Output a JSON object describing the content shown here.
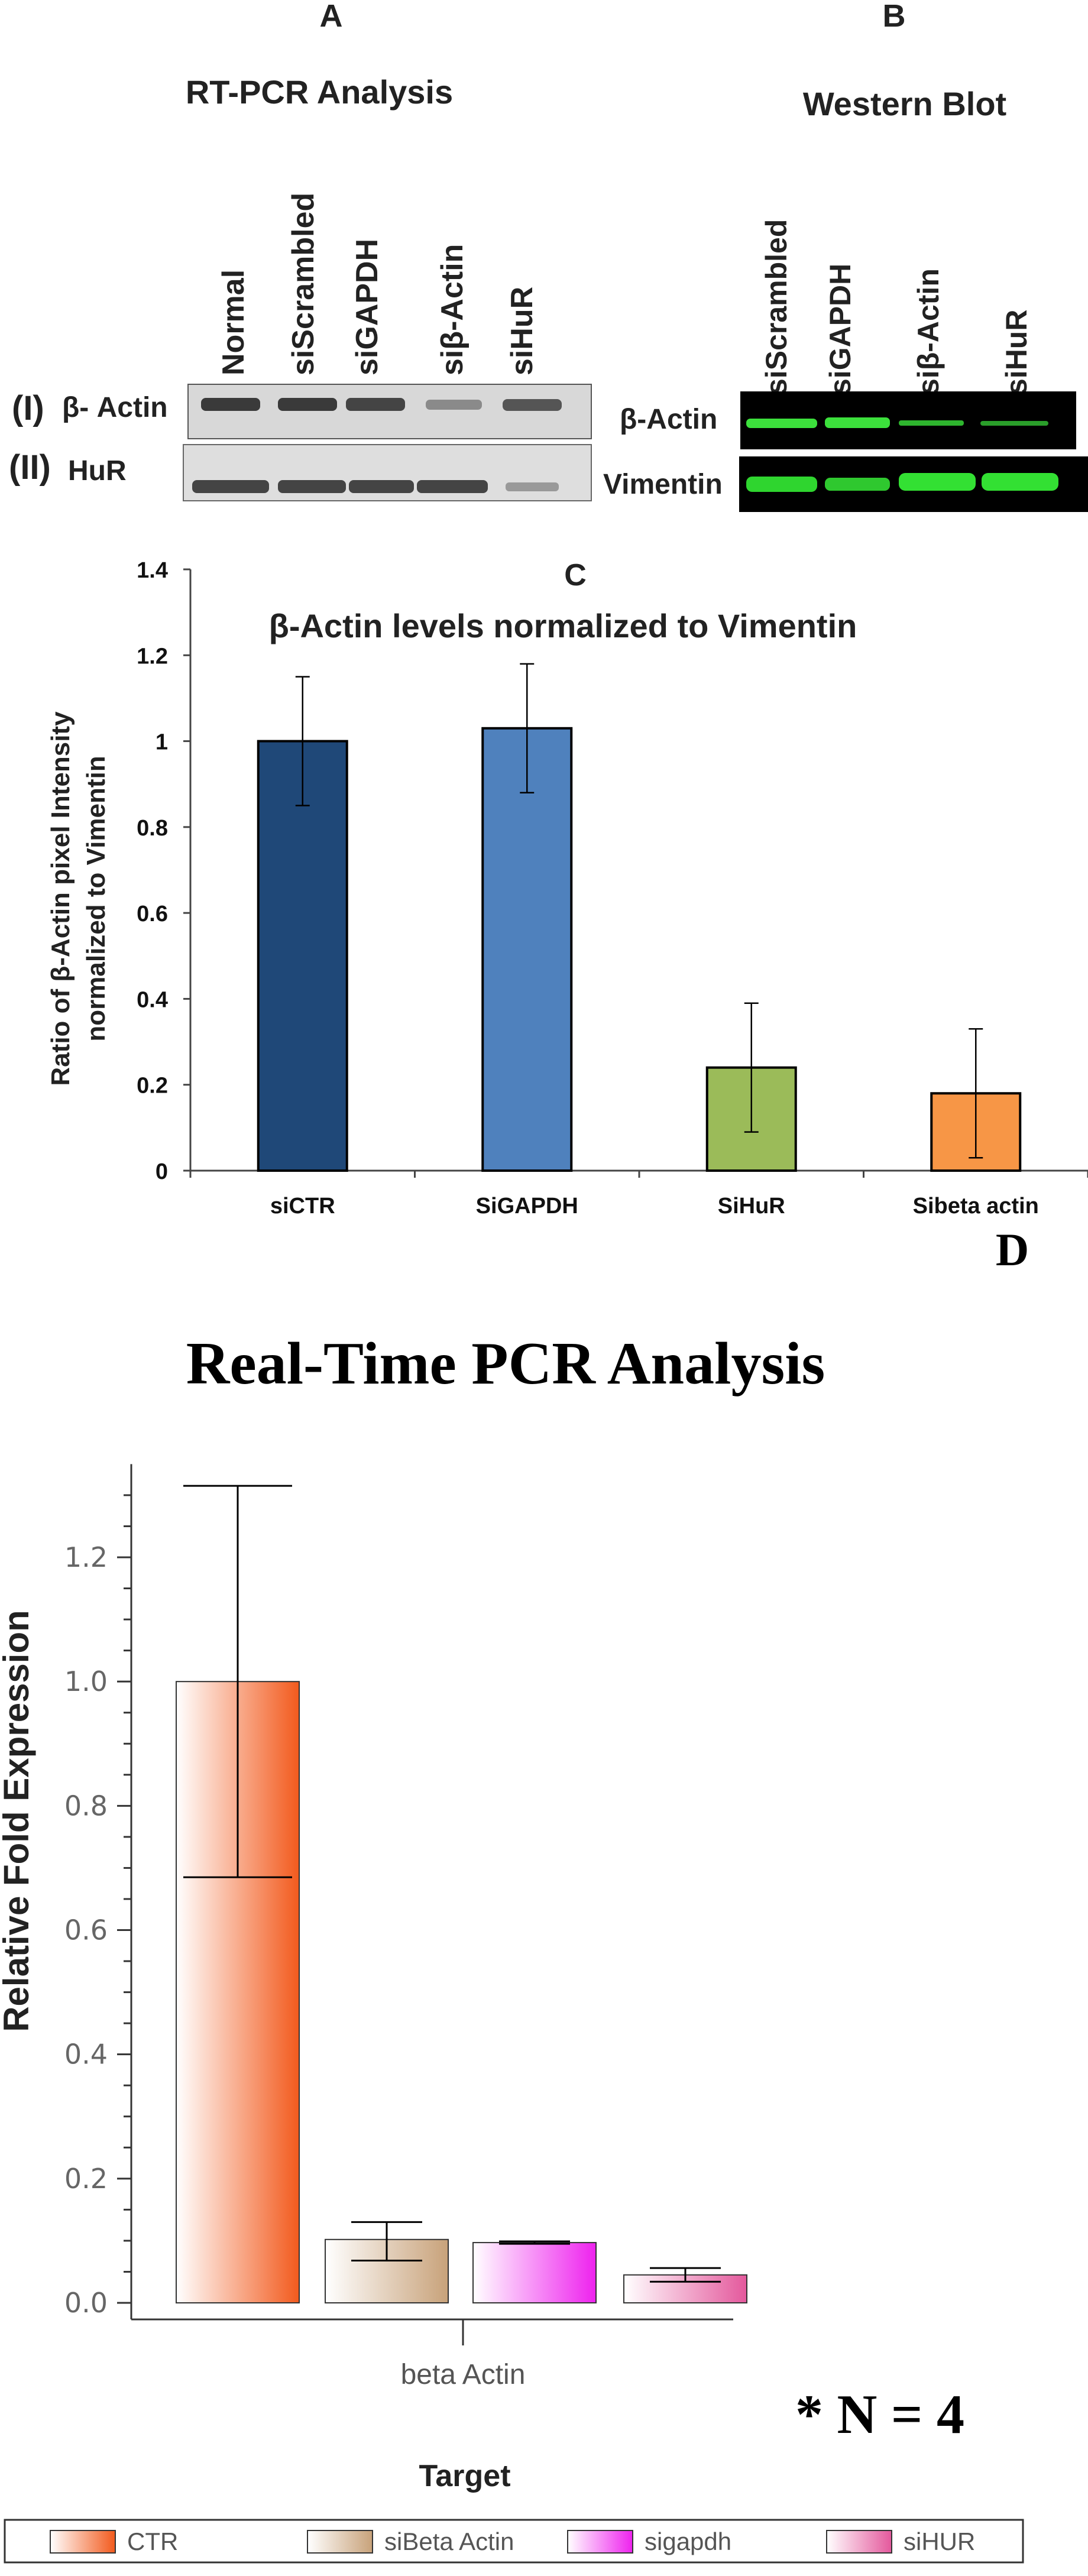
{
  "panel_a": {
    "letter": "A",
    "title": "RT-PCR Analysis",
    "lanes": [
      "Normal",
      "siScrambled",
      "siGAPDH",
      "siβ-Actin",
      "siHuR"
    ],
    "rows": [
      {
        "prefix": "(I)",
        "label": "β- Actin"
      },
      {
        "prefix": "(II)",
        "label": "HuR"
      }
    ]
  },
  "panel_b": {
    "letter": "B",
    "title": "Western Blot",
    "lanes": [
      "siScrambled",
      "siGAPDH",
      "siβ-Actin",
      "siHuR"
    ],
    "rows": [
      "β-Actin",
      "Vimentin"
    ]
  },
  "panel_c": {
    "letter": "C"
  },
  "panel_d": {
    "letter": "D",
    "footnote": "* N = 4"
  },
  "chart_data": [
    {
      "type": "bar",
      "title": "β-Actin levels normalized to Vimentin",
      "ylabel_lines": [
        "Ratio of β-Actin pixel Intensity",
        "normalized to Vimentin"
      ],
      "categories": [
        "siCTR",
        "SiGAPDH",
        "SiHuR",
        "Sibeta actin"
      ],
      "values": [
        1.0,
        1.03,
        0.24,
        0.18
      ],
      "errors": [
        0.15,
        0.15,
        0.15,
        0.15
      ],
      "colors": [
        "#1f4878",
        "#4f81bd",
        "#9bbb59",
        "#f79646"
      ],
      "ylim": [
        0,
        1.4
      ],
      "yticks": [
        "0",
        "0.2",
        "0.4",
        "0.6",
        "0.8",
        "1",
        "1.2",
        "1.4"
      ]
    },
    {
      "type": "bar",
      "title": "Real-Time PCR Analysis",
      "xlabel": "Target",
      "ylabel": "Relative Fold Expression",
      "category": "beta Actin",
      "series": [
        {
          "name": "CTR",
          "value": 1.0,
          "err_low": 0.685,
          "err_high": 1.315,
          "color_dark": "#f25a1d",
          "color_light": "#ffffff"
        },
        {
          "name": "siBeta Actin",
          "value": 0.102,
          "err_low": 0.068,
          "err_high": 0.13,
          "color_dark": "#c8a27a",
          "color_light": "#ffffff"
        },
        {
          "name": "sigapdh",
          "value": 0.097,
          "err_low": 0.095,
          "err_high": 0.099,
          "color_dark": "#ee22ee",
          "color_light": "#ffffff"
        },
        {
          "name": "siHUR",
          "value": 0.045,
          "err_low": 0.034,
          "err_high": 0.056,
          "color_dark": "#e4589c",
          "color_light": "#ffffff"
        }
      ],
      "ylim": [
        0,
        1.35
      ],
      "yticks": [
        "0.0",
        "0.2",
        "0.4",
        "0.6",
        "0.8",
        "1.0",
        "1.2"
      ],
      "legend_position": "bottom"
    }
  ]
}
